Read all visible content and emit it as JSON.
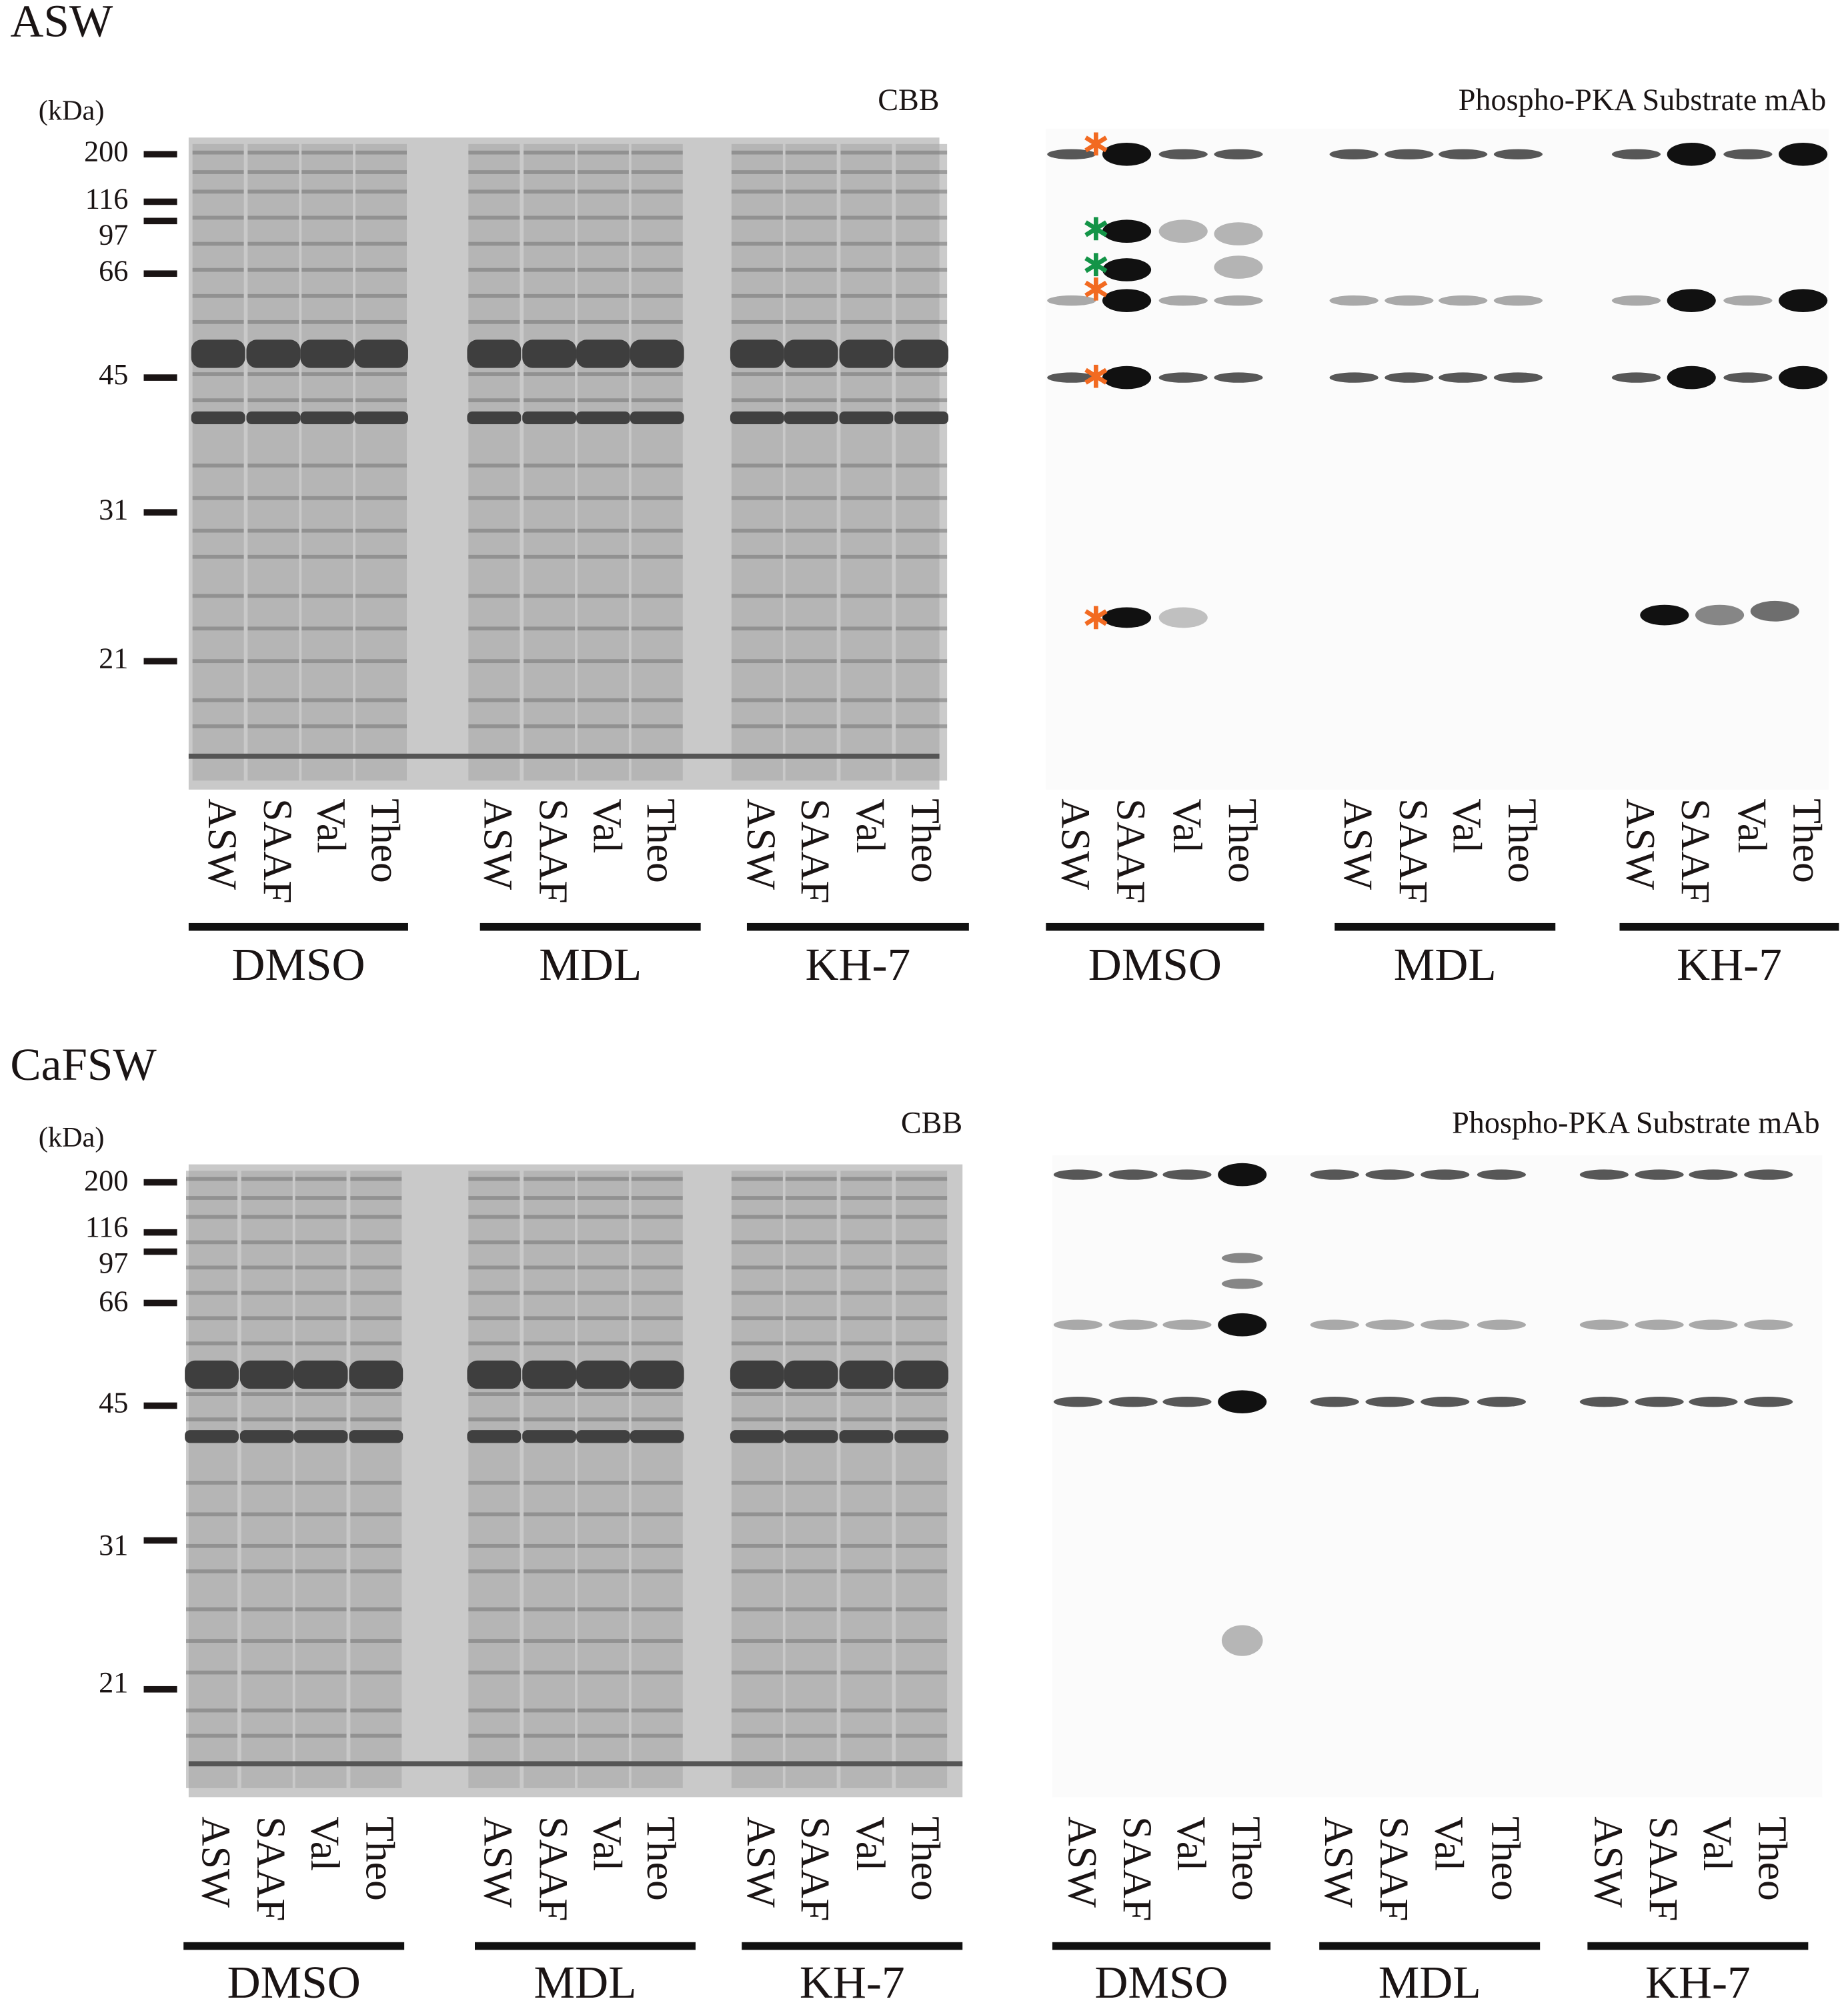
{
  "panels": [
    {
      "title": "ASW",
      "unit": "(kDa)",
      "markers": [
        200,
        116,
        97,
        66,
        45,
        31,
        21
      ],
      "blots": [
        {
          "label": "CBB",
          "groups": [
            {
              "name": "DMSO",
              "lanes": [
                "ASW",
                "SAAF",
                "Val",
                "Theo"
              ]
            },
            {
              "name": "MDL",
              "lanes": [
                "ASW",
                "SAAF",
                "Val",
                "Theo"
              ]
            },
            {
              "name": "KH-7",
              "lanes": [
                "ASW",
                "SAAF",
                "Val",
                "Theo"
              ]
            }
          ]
        },
        {
          "label": "Phospho-PKA Substrate mAb",
          "groups": [
            {
              "name": "DMSO",
              "lanes": [
                "ASW",
                "SAAF",
                "Val",
                "Theo"
              ]
            },
            {
              "name": "MDL",
              "lanes": [
                "ASW",
                "SAAF",
                "Val",
                "Theo"
              ]
            },
            {
              "name": "KH-7",
              "lanes": [
                "ASW",
                "SAAF",
                "Val",
                "Theo"
              ]
            }
          ]
        }
      ]
    },
    {
      "title": "CaFSW",
      "unit": "(kDa)",
      "markers": [
        200,
        116,
        97,
        66,
        45,
        31,
        21
      ],
      "blots": [
        {
          "label": "CBB",
          "groups": [
            {
              "name": "DMSO",
              "lanes": [
                "ASW",
                "SAAF",
                "Val",
                "Theo"
              ]
            },
            {
              "name": "MDL",
              "lanes": [
                "ASW",
                "SAAF",
                "Val",
                "Theo"
              ]
            },
            {
              "name": "KH-7",
              "lanes": [
                "ASW",
                "SAAF",
                "Val",
                "Theo"
              ]
            }
          ]
        },
        {
          "label": "Phospho-PKA Substrate mAb",
          "groups": [
            {
              "name": "DMSO",
              "lanes": [
                "ASW",
                "SAAF",
                "Val",
                "Theo"
              ]
            },
            {
              "name": "MDL",
              "lanes": [
                "ASW",
                "SAAF",
                "Val",
                "Theo"
              ]
            },
            {
              "name": "KH-7",
              "lanes": [
                "ASW",
                "SAAF",
                "Val",
                "Theo"
              ]
            }
          ]
        }
      ]
    }
  ]
}
